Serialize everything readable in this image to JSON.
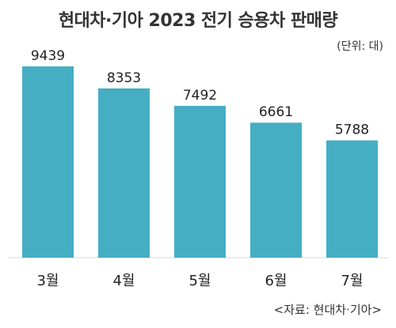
{
  "title": "현대차·기아 2023 전기 승용차 판매량",
  "unit_note": "(단위: 대)",
  "source_note": "<자료: 현대차·기아>",
  "colors": {
    "bar": "#45aec3",
    "baseline": "#d9d9d9"
  },
  "chart_data": {
    "type": "bar",
    "title": "현대차·기아 2023 전기 승용차 판매량",
    "categories": [
      "3월",
      "4월",
      "5월",
      "6월",
      "7월"
    ],
    "values": [
      9439,
      8353,
      7492,
      6661,
      5788
    ],
    "xlabel": "",
    "ylabel": "",
    "ylim": [
      0,
      10000
    ],
    "grid": false,
    "legend": "none",
    "data_labels": [
      "9439",
      "8353",
      "7492",
      "6661",
      "5788"
    ]
  }
}
